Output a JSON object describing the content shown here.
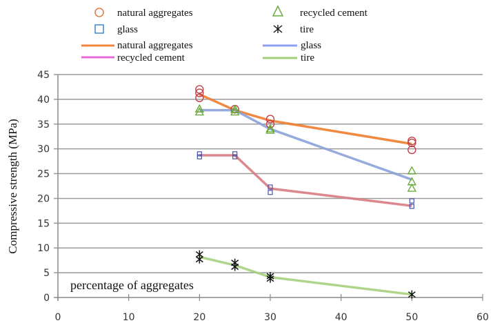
{
  "chart_data": {
    "type": "line",
    "title": "",
    "xlabel": "",
    "ylabel": "Compressive strength (MPa)",
    "annotation": "percentage of aggregates",
    "xlim": [
      0,
      60
    ],
    "ylim": [
      0,
      45
    ],
    "xticks": [
      0,
      10,
      20,
      30,
      40,
      50,
      60
    ],
    "yticks": [
      0,
      5,
      10,
      15,
      20,
      25,
      30,
      35,
      40,
      45
    ],
    "grid": "horizontal",
    "legend_position": "top",
    "marker_legend": [
      {
        "label": "natural aggregates",
        "marker": "circle",
        "color": "#e07a3a"
      },
      {
        "label": "recycled cement",
        "marker": "triangle",
        "color": "#6aaa3a"
      },
      {
        "label": "glass",
        "marker": "square",
        "color": "#3a8ad0"
      },
      {
        "label": "tire",
        "marker": "asterisk",
        "color": "#111111"
      }
    ],
    "line_legend": [
      {
        "label": "natural aggregates",
        "color": "#f0843a"
      },
      {
        "label": "recycled cement",
        "color": "#8f9ff0"
      },
      {
        "label": "glass",
        "color": "#e86ad8"
      },
      {
        "label": "tire",
        "color": "#9fcf7a"
      }
    ],
    "series": [
      {
        "name": "natural aggregates",
        "marker": "circle",
        "marker_color": "#c0404a",
        "line_color": "#ee7d2e",
        "points": [
          [
            20,
            42.0
          ],
          [
            20,
            41.3
          ],
          [
            20,
            40.3
          ],
          [
            25,
            38.0
          ],
          [
            30,
            36.0
          ],
          [
            30,
            35.0
          ],
          [
            50,
            31.6
          ],
          [
            50,
            31.2
          ],
          [
            50,
            29.8
          ]
        ],
        "fit_x": [
          20,
          25,
          30,
          50
        ],
        "fit_y": [
          41.0,
          37.8,
          35.7,
          31.0
        ]
      },
      {
        "name": "recycled cement",
        "marker": "triangle",
        "marker_color": "#6aaa3a",
        "line_color": "#8aa2d8",
        "points": [
          [
            20,
            38.0
          ],
          [
            20,
            37.4
          ],
          [
            25,
            37.9
          ],
          [
            25,
            37.4
          ],
          [
            30,
            34.0
          ],
          [
            30,
            33.7
          ],
          [
            50,
            25.5
          ],
          [
            50,
            23.3
          ],
          [
            50,
            22.0
          ]
        ],
        "fit_x": [
          20,
          25,
          30,
          50
        ],
        "fit_y": [
          37.8,
          37.8,
          34.0,
          23.8
        ]
      },
      {
        "name": "glass",
        "marker": "square",
        "marker_color": "#4a50a8",
        "line_color": "#d97a82",
        "points": [
          [
            20,
            29.0
          ],
          [
            20,
            28.4
          ],
          [
            25,
            29.0
          ],
          [
            25,
            28.4
          ],
          [
            30,
            22.3
          ],
          [
            30,
            21.2
          ],
          [
            50,
            19.5
          ],
          [
            50,
            18.4
          ]
        ],
        "fit_x": [
          20,
          25,
          30,
          50
        ],
        "fit_y": [
          28.7,
          28.7,
          22.0,
          18.5
        ]
      },
      {
        "name": "tire",
        "marker": "asterisk",
        "marker_color": "#111111",
        "line_color": "#a6d07e",
        "points": [
          [
            20,
            8.7
          ],
          [
            20,
            7.7
          ],
          [
            25,
            7.0
          ],
          [
            25,
            6.2
          ],
          [
            30,
            4.3
          ],
          [
            30,
            3.8
          ],
          [
            50,
            0.6
          ]
        ],
        "fit_x": [
          20,
          25,
          30,
          50
        ],
        "fit_y": [
          8.2,
          6.5,
          4.1,
          0.6
        ]
      }
    ]
  }
}
